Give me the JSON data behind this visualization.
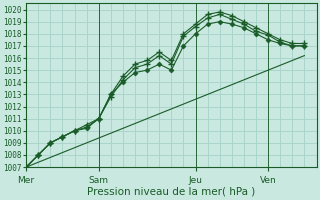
{
  "background_color": "#c8e8e0",
  "grid_color": "#aad4cc",
  "line_color": "#1a5c28",
  "marker_color": "#1a5c28",
  "ylim": [
    1007,
    1020.5
  ],
  "yticks": [
    1007,
    1008,
    1009,
    1010,
    1011,
    1012,
    1013,
    1014,
    1015,
    1016,
    1017,
    1018,
    1019,
    1020
  ],
  "xlabel": "Pression niveau de la mer( hPa )",
  "day_labels": [
    "Mer",
    "Sam",
    "Jeu",
    "Ven"
  ],
  "day_positions": [
    0,
    3,
    7,
    10
  ],
  "xlim": [
    0,
    12
  ],
  "series": [
    {
      "x": [
        0,
        0.5,
        1.0,
        1.5,
        2.0,
        2.5,
        3.0,
        3.5,
        4.0,
        4.5,
        5.0,
        5.5,
        6.0,
        6.5,
        7.0,
        7.5,
        8.0,
        8.5,
        9.0,
        9.5,
        10.0,
        10.5,
        11.0,
        11.5
      ],
      "y": [
        1007.0,
        1008.0,
        1009.0,
        1009.5,
        1010.0,
        1010.5,
        1011.0,
        1013.0,
        1014.5,
        1015.5,
        1015.8,
        1016.5,
        1015.8,
        1018.0,
        1018.8,
        1019.6,
        1019.8,
        1019.5,
        1019.0,
        1018.5,
        1018.0,
        1017.5,
        1017.2,
        1017.2
      ],
      "marker": "+",
      "markersize": 4,
      "lw": 0.8
    },
    {
      "x": [
        0,
        0.5,
        1.0,
        1.5,
        2.0,
        2.5,
        3.0,
        3.5,
        4.0,
        4.5,
        5.0,
        5.5,
        6.0,
        6.5,
        7.0,
        7.5,
        8.0,
        8.5,
        9.0,
        9.5,
        10.0,
        10.5,
        11.0,
        11.5
      ],
      "y": [
        1007.0,
        1008.0,
        1009.0,
        1009.5,
        1010.0,
        1010.3,
        1011.0,
        1012.8,
        1014.2,
        1015.2,
        1015.5,
        1016.2,
        1015.5,
        1017.8,
        1018.6,
        1019.3,
        1019.6,
        1019.2,
        1018.8,
        1018.2,
        1017.9,
        1017.3,
        1017.0,
        1017.0
      ],
      "marker": "+",
      "markersize": 4,
      "lw": 0.8
    },
    {
      "x": [
        0,
        0.5,
        1.0,
        1.5,
        2.0,
        2.5,
        3.0,
        3.5,
        4.0,
        4.5,
        5.0,
        5.5,
        6.0,
        6.5,
        7.0,
        7.5,
        8.0,
        8.5,
        9.0,
        9.5,
        10.0,
        10.5,
        11.0,
        11.5
      ],
      "y": [
        1007.0,
        1008.0,
        1009.0,
        1009.5,
        1010.0,
        1010.2,
        1011.0,
        1013.0,
        1014.0,
        1014.8,
        1015.0,
        1015.5,
        1015.0,
        1017.0,
        1018.0,
        1018.8,
        1019.0,
        1018.8,
        1018.5,
        1018.0,
        1017.5,
        1017.2,
        1017.0,
        1017.0
      ],
      "marker": "D",
      "markersize": 2.5,
      "lw": 0.8
    },
    {
      "x": [
        0,
        11.5
      ],
      "y": [
        1007.0,
        1016.2
      ],
      "marker": null,
      "markersize": 0,
      "lw": 0.8
    }
  ]
}
